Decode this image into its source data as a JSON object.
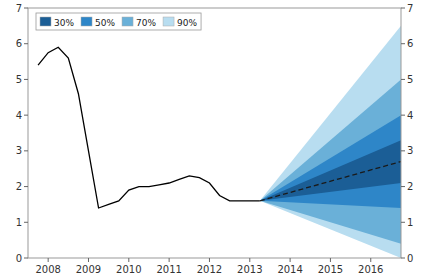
{
  "chart_data": {
    "type": "line",
    "xlim": [
      2007.5,
      2016.75
    ],
    "ylim": [
      0,
      7
    ],
    "xticks": [
      2008,
      2009,
      2010,
      2011,
      2012,
      2013,
      2014,
      2015,
      2016
    ],
    "yticks": [
      0,
      1,
      2,
      3,
      4,
      5,
      6,
      7
    ],
    "y2lim": [
      0,
      7
    ],
    "y2ticks": [
      0,
      1,
      2,
      3,
      4,
      5,
      6,
      7
    ],
    "grid": false,
    "legend": "upper left",
    "series": [
      {
        "name": "30%",
        "type": "area",
        "color": "#1b5e96",
        "x": [
          2013.25,
          2016.75
        ],
        "lower": [
          1.6,
          2.1
        ],
        "values": [
          1.6,
          3.3
        ]
      },
      {
        "name": "50%",
        "type": "area",
        "color": "#2e86c8",
        "x": [
          2013.25,
          2016.75
        ],
        "lower": [
          1.6,
          1.4
        ],
        "values": [
          1.6,
          4.0
        ]
      },
      {
        "name": "70%",
        "type": "area",
        "color": "#6ab0d8",
        "x": [
          2013.25,
          2016.75
        ],
        "lower": [
          1.6,
          0.4
        ],
        "values": [
          1.6,
          5.0
        ]
      },
      {
        "name": "90%",
        "type": "area",
        "color": "#b8ddf0",
        "x": [
          2013.25,
          2016.75
        ],
        "lower": [
          1.6,
          0
        ],
        "values": [
          1.6,
          6.5
        ]
      },
      {
        "type": "line",
        "color": "#000000",
        "x": [
          2007.75,
          2008.0,
          2008.25,
          2008.5,
          2008.75,
          2009.0,
          2009.25,
          2009.5,
          2009.75,
          2010.0,
          2010.25,
          2010.5,
          2010.75,
          2011.0,
          2011.25,
          2011.5,
          2011.75,
          2012.0,
          2012.25,
          2012.5,
          2012.75,
          2013.0,
          2013.25
        ],
        "values": [
          5.4,
          5.75,
          5.9,
          5.6,
          4.6,
          3.0,
          1.4,
          1.5,
          1.6,
          1.9,
          2.0,
          2.0,
          2.05,
          2.1,
          2.2,
          2.3,
          2.25,
          2.1,
          1.75,
          1.6,
          1.6,
          1.6,
          1.6
        ]
      },
      {
        "type": "line",
        "line_style": "dashed",
        "color": "#1a1a1a",
        "x": [
          2013.25,
          2016.75
        ],
        "values": [
          1.6,
          2.7
        ]
      }
    ]
  }
}
